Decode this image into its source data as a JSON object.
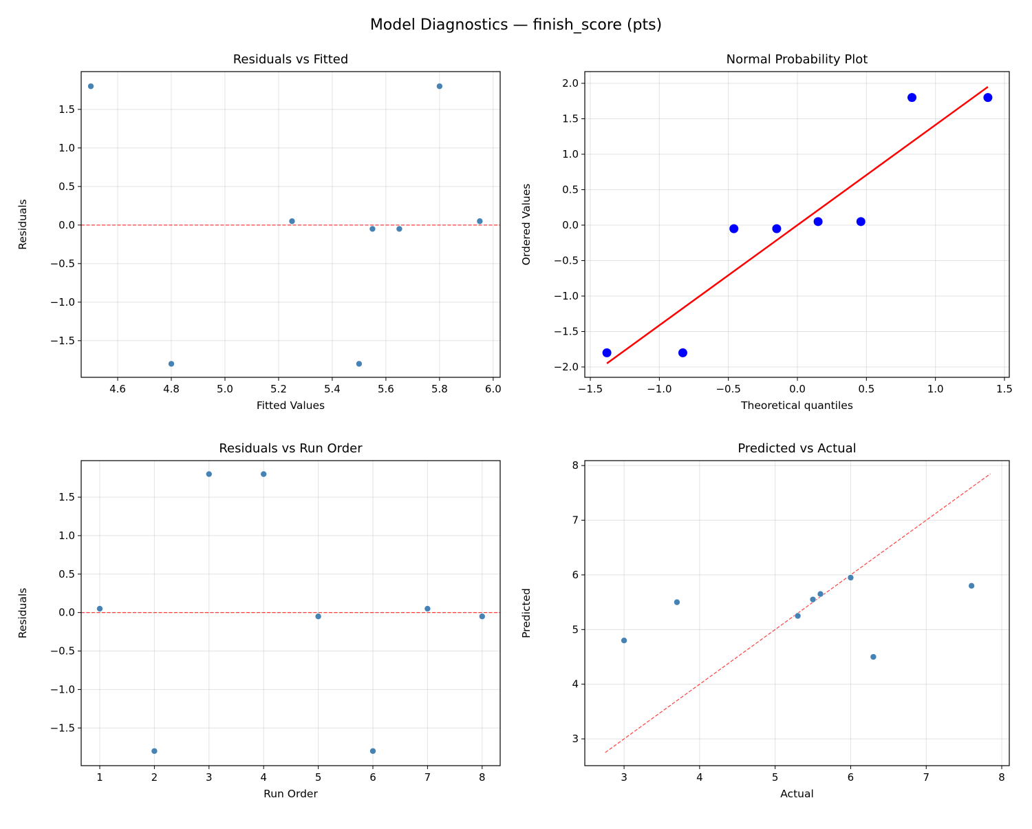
{
  "figure": {
    "title": "Model Diagnostics — finish_score (pts)"
  },
  "chart_data": [
    {
      "type": "scatter",
      "title": "Residuals vs Fitted",
      "xlabel": "Fitted Values",
      "ylabel": "Residuals",
      "xlim": [
        4.464,
        6.026
      ],
      "ylim": [
        -1.975,
        1.99
      ],
      "xticks": [
        4.6,
        4.8,
        5.0,
        5.2,
        5.4,
        5.6,
        5.8,
        6.0
      ],
      "yticks": [
        -1.5,
        -1.0,
        -0.5,
        0.0,
        0.5,
        1.0,
        1.5
      ],
      "tick_decimals": [
        1,
        1
      ],
      "grid": true,
      "marker_color": "#4682b4",
      "points": [
        [
          4.5,
          1.8
        ],
        [
          4.8,
          -1.8
        ],
        [
          5.25,
          0.05
        ],
        [
          5.5,
          -1.8
        ],
        [
          5.55,
          -0.05
        ],
        [
          5.65,
          -0.05
        ],
        [
          5.8,
          1.8
        ],
        [
          5.95,
          0.05
        ]
      ],
      "hline": {
        "y": 0,
        "color": "#ff0000",
        "style": "dashed"
      }
    },
    {
      "type": "scatter",
      "title": "Normal Probability Plot",
      "xlabel": "Theoretical quantiles",
      "ylabel": "Ordered Values",
      "xlim": [
        -1.54,
        1.535
      ],
      "ylim": [
        -2.146,
        2.165
      ],
      "xticks": [
        -1.5,
        -1.0,
        -0.5,
        0.0,
        0.5,
        1.0,
        1.5
      ],
      "yticks": [
        -2.0,
        -1.5,
        -1.0,
        -0.5,
        0.0,
        0.5,
        1.0,
        1.5,
        2.0
      ],
      "tick_decimals": [
        1,
        1
      ],
      "grid": true,
      "marker_color": "#0000ff",
      "marker_size": "large",
      "points": [
        [
          -1.38,
          -1.8
        ],
        [
          -0.83,
          -1.8
        ],
        [
          -0.46,
          -0.05
        ],
        [
          -0.15,
          -0.05
        ],
        [
          0.15,
          0.05
        ],
        [
          0.46,
          0.05
        ],
        [
          0.83,
          1.8
        ],
        [
          1.38,
          1.8
        ]
      ],
      "fit_line": {
        "x": [
          -1.38,
          1.38
        ],
        "y": [
          -1.95,
          1.95
        ],
        "color": "#ff0000",
        "style": "solid"
      }
    },
    {
      "type": "scatter",
      "title": "Residuals vs Run Order",
      "xlabel": "Run Order",
      "ylabel": "Residuals",
      "xlim": [
        0.66,
        8.33
      ],
      "ylim": [
        -1.99,
        1.975
      ],
      "xticks": [
        1,
        2,
        3,
        4,
        5,
        6,
        7,
        8
      ],
      "yticks": [
        -1.5,
        -1.0,
        -0.5,
        0.0,
        0.5,
        1.0,
        1.5
      ],
      "tick_decimals": [
        0,
        1
      ],
      "grid": true,
      "marker_color": "#4682b4",
      "points": [
        [
          1,
          0.05
        ],
        [
          2,
          -1.8
        ],
        [
          3,
          1.8
        ],
        [
          4,
          1.8
        ],
        [
          5,
          -0.05
        ],
        [
          6,
          -1.8
        ],
        [
          7,
          0.05
        ],
        [
          8,
          -0.05
        ]
      ],
      "hline": {
        "y": 0,
        "color": "#ff0000",
        "style": "dashed"
      }
    },
    {
      "type": "scatter",
      "title": "Predicted vs Actual",
      "xlabel": "Actual",
      "ylabel": "Predicted",
      "xlim": [
        2.48,
        8.1
      ],
      "ylim": [
        2.51,
        8.09
      ],
      "xticks": [
        3,
        4,
        5,
        6,
        7,
        8
      ],
      "yticks": [
        3,
        4,
        5,
        6,
        7,
        8
      ],
      "tick_decimals": [
        0,
        0
      ],
      "grid": true,
      "marker_color": "#4682b4",
      "points": [
        [
          3.0,
          4.8
        ],
        [
          3.7,
          5.5
        ],
        [
          5.3,
          5.25
        ],
        [
          5.5,
          5.55
        ],
        [
          5.6,
          5.65
        ],
        [
          6.0,
          5.95
        ],
        [
          6.3,
          4.5
        ],
        [
          7.6,
          5.8
        ]
      ],
      "fit_line": {
        "x": [
          2.75,
          7.85
        ],
        "y": [
          2.75,
          7.85
        ],
        "color": "#ff0000",
        "style": "dashed"
      }
    }
  ]
}
